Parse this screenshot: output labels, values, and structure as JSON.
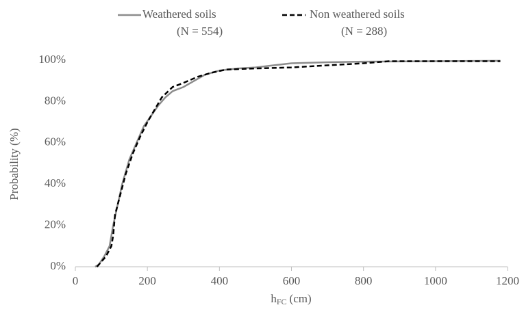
{
  "chart_data": {
    "type": "line",
    "y_label": "Probability (%)",
    "x_label": "h",
    "x_label_subscript": "FC",
    "x_label_unit": "(cm)",
    "xlim": [
      0,
      1200
    ],
    "xticks": [
      0,
      200,
      400,
      600,
      800,
      1000,
      1200
    ],
    "ylim": [
      0,
      100
    ],
    "yticks": [
      {
        "value": 0,
        "label": "0%"
      },
      {
        "value": 20,
        "label": "20%"
      },
      {
        "value": 40,
        "label": "40%"
      },
      {
        "value": 60,
        "label": "60%"
      },
      {
        "value": 80,
        "label": "80%"
      },
      {
        "value": 100,
        "label": "100%"
      }
    ],
    "grid": false,
    "legend": "top",
    "series": [
      {
        "name": "Weathered soils",
        "n_label": "(N = 554)",
        "color": "#8c8c8c",
        "dash": false,
        "x": [
          55,
          65,
          80,
          95,
          105,
          115,
          130,
          150,
          170,
          190,
          210,
          230,
          250,
          270,
          300,
          330,
          360,
          400,
          450,
          500,
          550,
          600,
          700,
          800,
          1000,
          1180
        ],
        "values": [
          0,
          1,
          5,
          10,
          20,
          28,
          40,
          52,
          60,
          68,
          73,
          78,
          82,
          85,
          87,
          90,
          93,
          95,
          96,
          96.5,
          97.5,
          98.5,
          99,
          99.3,
          99.5,
          99.7
        ]
      },
      {
        "name": "Non weathered soils",
        "n_label": "(N = 288)",
        "color": "#000000",
        "dash": true,
        "x": [
          60,
          70,
          85,
          100,
          105,
          110,
          125,
          140,
          160,
          180,
          200,
          220,
          240,
          270,
          300,
          340,
          380,
          420,
          500,
          600,
          700,
          800,
          870,
          1000,
          1180
        ],
        "values": [
          0,
          2,
          5,
          10,
          15,
          25,
          35,
          45,
          55,
          63,
          70,
          76,
          82,
          87,
          89,
          92,
          94,
          95.5,
          96,
          96.5,
          97.5,
          98.5,
          99.5,
          99.5,
          99.5
        ]
      }
    ]
  }
}
